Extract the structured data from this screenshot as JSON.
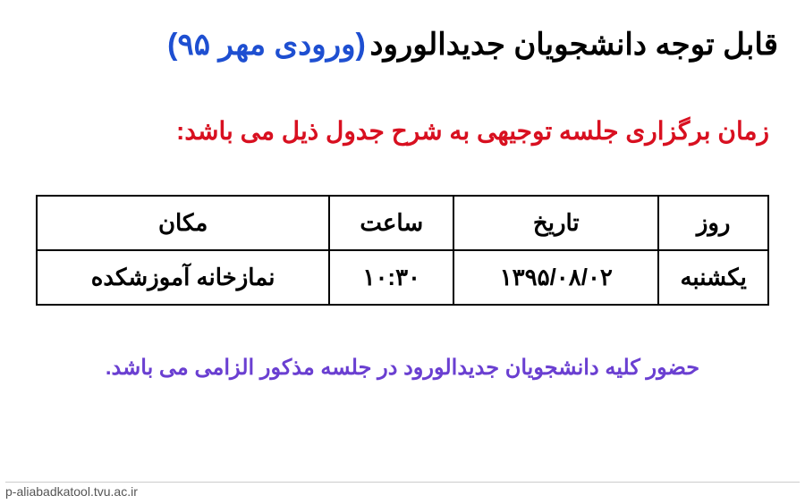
{
  "title": {
    "black": "قابل توجه دانشجویان جدیدالورود",
    "blue": "(ورودی مهر ۹۵)"
  },
  "subtitle": "زمان برگزاری جلسه توجیهی به شرح جدول  ذیل می باشد:",
  "table": {
    "headers": {
      "day": "روز",
      "date": "تاریخ",
      "time": "ساعت",
      "place": "مکان"
    },
    "row": {
      "day": "یکشنبه",
      "date": "۱۳۹۵/۰۸/۰۲",
      "time": "۱۰:۳۰",
      "place": "نمازخانه آموزشکده"
    }
  },
  "footer": "حضور کلیه دانشجویان جدیدالورود در جلسه مذکور الزامی می باشد.",
  "source": "p-aliabadkatool.tvu.ac.ir",
  "colors": {
    "title_black": "#000000",
    "title_blue": "#1e4fd1",
    "subtitle_red": "#d81020",
    "footer_purple": "#6a3fd1",
    "border": "#000000",
    "background": "#ffffff"
  }
}
